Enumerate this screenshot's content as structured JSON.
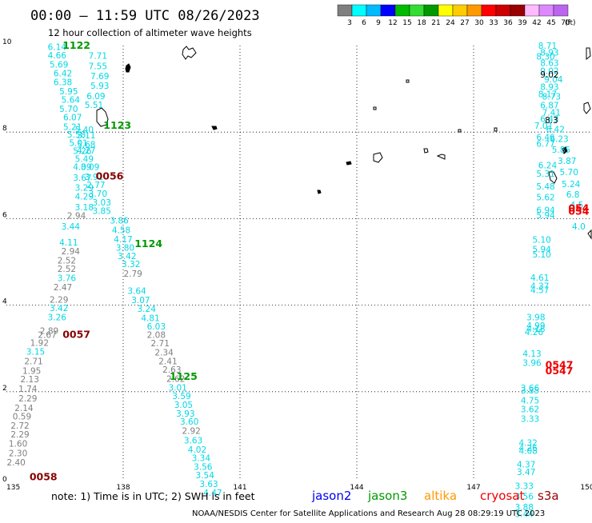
{
  "header": {
    "title": "00:00 — 11:59 UTC 08/26/2023",
    "subtitle": "12 hour collection of altimeter wave heights"
  },
  "colorbar": {
    "unit": "(ft)",
    "colors": [
      "#7f7f7f",
      "#00ffff",
      "#00bbff",
      "#0000ff",
      "#00bb00",
      "#33dd33",
      "#009900",
      "#ffff00",
      "#ffcc00",
      "#ff9900",
      "#ff0000",
      "#cc0000",
      "#990000",
      "#ffbbff",
      "#dd88ff",
      "#bb66ee"
    ],
    "labels": [
      "3",
      "6",
      "9",
      "12",
      "15",
      "18",
      "21",
      "24",
      "27",
      "30",
      "33",
      "36",
      "39",
      "42",
      "45",
      "70"
    ]
  },
  "footer": {
    "note": "note:  1) Time is in UTC;  2) SWH is in feet",
    "credit": "NOAA/NESDIS Center for Satellite Applications and Research     Aug 28 08:29:19 UTC 2023",
    "satellites": [
      {
        "name": "jason2",
        "color": "#0000ee"
      },
      {
        "name": "jason3",
        "color": "#009900"
      },
      {
        "name": "altika",
        "color": "#ff9900"
      },
      {
        "name": "cryosat",
        "color": "#ee0000"
      },
      {
        "name": "s3a",
        "color": "#990000"
      }
    ]
  },
  "chart_data": {
    "type": "scatter",
    "title": "00:00 — 11:59 UTC 08/26/2023",
    "subtitle": "12 hour collection of altimeter wave heights",
    "xlim": [
      135,
      150
    ],
    "ylim": [
      0,
      10
    ],
    "xticks": [
      "135",
      "138",
      "141",
      "144",
      "147",
      "150"
    ],
    "yticks": [
      "0",
      "2",
      "4",
      "6",
      "8",
      "10"
    ],
    "grid": true,
    "value_unit": "ft",
    "colors": {
      "band_3": "#7f7f7f",
      "band_6": "#00d8e6",
      "jason3": "#009900",
      "s3a": "#880000",
      "cryosat": "#ee0000"
    },
    "pass_labels": [
      {
        "label": "1122",
        "x": 136.8,
        "y": 10.0,
        "sat": "jason3"
      },
      {
        "label": "1123",
        "x": 137.85,
        "y": 8.15,
        "sat": "jason3"
      },
      {
        "label": "0056",
        "x": 137.65,
        "y": 6.98,
        "sat": "s3a"
      },
      {
        "label": "1124",
        "x": 138.65,
        "y": 5.42,
        "sat": "jason3"
      },
      {
        "label": "0057",
        "x": 136.8,
        "y": 3.32,
        "sat": "s3a"
      },
      {
        "label": "1125",
        "x": 139.55,
        "y": 2.35,
        "sat": "jason3"
      },
      {
        "label": "0058",
        "x": 135.95,
        "y": 0.03,
        "sat": "s3a"
      },
      {
        "label": "0547",
        "x": 149.2,
        "y": 2.62,
        "sat": "cryosat"
      },
      {
        "label": "0547",
        "x": 149.2,
        "y": 2.48,
        "sat": "cryosat"
      },
      {
        "label": "054",
        "x": 149.7,
        "y": 6.24,
        "sat": "cryosat"
      },
      {
        "label": "054",
        "x": 149.7,
        "y": 6.16,
        "sat": "cryosat"
      }
    ],
    "series": [
      {
        "name": "1122",
        "color": "#00d8e6",
        "points": [
          {
            "x": 136.3,
            "y": 9.97,
            "v": "6.14"
          },
          {
            "x": 136.3,
            "y": 9.78,
            "v": "4.66"
          },
          {
            "x": 136.35,
            "y": 9.57,
            "v": "5.69"
          },
          {
            "x": 136.45,
            "y": 9.36,
            "v": "6.42"
          },
          {
            "x": 136.45,
            "y": 9.16,
            "v": "6.38"
          },
          {
            "x": 136.6,
            "y": 8.95,
            "v": "5.95"
          },
          {
            "x": 136.65,
            "y": 8.75,
            "v": "5.64"
          },
          {
            "x": 136.6,
            "y": 8.54,
            "v": "5.70"
          },
          {
            "x": 136.7,
            "y": 8.35,
            "v": "6.07"
          },
          {
            "x": 136.7,
            "y": 8.12,
            "v": "5.21"
          },
          {
            "x": 136.8,
            "y": 7.95,
            "v": "5.58"
          },
          {
            "x": 136.85,
            "y": 7.75,
            "v": "5.01"
          },
          {
            "x": 136.95,
            "y": 7.57,
            "v": "5.26"
          },
          {
            "x": 137.0,
            "y": 7.38,
            "v": "5.49"
          },
          {
            "x": 136.95,
            "y": 7.2,
            "v": "4.09"
          },
          {
            "x": 136.95,
            "y": 6.95,
            "v": "3.67"
          },
          {
            "x": 137.0,
            "y": 6.72,
            "v": "3.29"
          },
          {
            "x": 137.0,
            "y": 6.52,
            "v": "4.29"
          },
          {
            "x": 137.0,
            "y": 6.27,
            "v": "3.18"
          },
          {
            "x": 137.35,
            "y": 9.77,
            "v": "7.71"
          },
          {
            "x": 137.35,
            "y": 9.53,
            "v": "7.55"
          },
          {
            "x": 137.4,
            "y": 9.3,
            "v": "7.69"
          },
          {
            "x": 137.4,
            "y": 9.08,
            "v": "5.93"
          },
          {
            "x": 137.3,
            "y": 8.84,
            "v": "6.09"
          },
          {
            "x": 137.25,
            "y": 8.63,
            "v": "5.51"
          },
          {
            "x": 137.0,
            "y": 8.06,
            "v": "5.40"
          },
          {
            "x": 137.05,
            "y": 7.93,
            "v": "3.11"
          },
          {
            "x": 137.05,
            "y": 7.72,
            "v": "5.68"
          },
          {
            "x": 137.05,
            "y": 7.58,
            "v": "4.27"
          },
          {
            "x": 137.15,
            "y": 7.2,
            "v": "3.09"
          },
          {
            "x": 137.25,
            "y": 6.97,
            "v": "3.91"
          },
          {
            "x": 137.3,
            "y": 6.78,
            "v": "2.77"
          },
          {
            "x": 137.35,
            "y": 6.58,
            "v": "3.70"
          },
          {
            "x": 137.45,
            "y": 6.38,
            "v": "3.03"
          },
          {
            "x": 137.45,
            "y": 6.18,
            "v": "3.85"
          }
        ]
      },
      {
        "name": "1124",
        "color": "#00d8e6",
        "points": [
          {
            "x": 137.9,
            "y": 5.96,
            "v": "3.86"
          },
          {
            "x": 137.95,
            "y": 5.74,
            "v": "4.58"
          },
          {
            "x": 138.0,
            "y": 5.53,
            "v": "4.17"
          },
          {
            "x": 138.05,
            "y": 5.33,
            "v": "3.80"
          },
          {
            "x": 138.1,
            "y": 5.14,
            "v": "3.42"
          },
          {
            "x": 138.2,
            "y": 4.95,
            "v": "3.32"
          },
          {
            "x": 138.35,
            "y": 4.33,
            "v": "3.64"
          },
          {
            "x": 138.45,
            "y": 4.12,
            "v": "3.07"
          },
          {
            "x": 138.6,
            "y": 3.92,
            "v": "3.24"
          },
          {
            "x": 138.7,
            "y": 3.71,
            "v": "4.81"
          },
          {
            "x": 138.85,
            "y": 3.51,
            "v": "6.03"
          }
        ]
      },
      {
        "name": "1124-low",
        "color": "#7f7f7f",
        "points": [
          {
            "x": 138.25,
            "y": 4.73,
            "v": "2.79"
          },
          {
            "x": 138.85,
            "y": 3.32,
            "v": "2.08"
          },
          {
            "x": 138.95,
            "y": 3.12,
            "v": "2.71"
          },
          {
            "x": 139.05,
            "y": 2.91,
            "v": "2.34"
          },
          {
            "x": 139.15,
            "y": 2.71,
            "v": "2.41"
          },
          {
            "x": 139.25,
            "y": 2.51,
            "v": "2.63"
          },
          {
            "x": 139.35,
            "y": 2.3,
            "v": "2.62"
          }
        ]
      },
      {
        "name": "1125",
        "color": "#00d8e6",
        "points": [
          {
            "x": 139.4,
            "y": 2.1,
            "v": "3.01"
          },
          {
            "x": 139.5,
            "y": 1.9,
            "v": "3.59"
          },
          {
            "x": 139.55,
            "y": 1.7,
            "v": "3.05"
          },
          {
            "x": 139.6,
            "y": 1.5,
            "v": "3.93"
          },
          {
            "x": 139.7,
            "y": 1.31,
            "v": "3.60"
          },
          {
            "x": 139.8,
            "y": 0.88,
            "v": "3.63"
          },
          {
            "x": 139.9,
            "y": 0.67,
            "v": "4.02"
          },
          {
            "x": 140.0,
            "y": 0.47,
            "v": "3.34"
          },
          {
            "x": 140.05,
            "y": 0.27,
            "v": "3.56"
          },
          {
            "x": 140.1,
            "y": 0.07,
            "v": "3.54"
          },
          {
            "x": 140.2,
            "y": -0.13,
            "v": "3.63"
          },
          {
            "x": 140.3,
            "y": -0.33,
            "v": "4.47"
          }
        ]
      },
      {
        "name": "1125-low",
        "color": "#7f7f7f",
        "points": [
          {
            "x": 139.75,
            "y": 1.1,
            "v": "2.92"
          }
        ]
      },
      {
        "name": "0057",
        "color": "#7f7f7f",
        "points": [
          {
            "x": 136.8,
            "y": 6.07,
            "v": "2.94"
          },
          {
            "x": 136.65,
            "y": 5.25,
            "v": "2.94"
          },
          {
            "x": 136.55,
            "y": 5.04,
            "v": "2.52"
          },
          {
            "x": 136.55,
            "y": 4.84,
            "v": "2.52"
          },
          {
            "x": 136.45,
            "y": 4.42,
            "v": "2.47"
          },
          {
            "x": 136.35,
            "y": 4.13,
            "v": "2.29"
          },
          {
            "x": 136.1,
            "y": 3.41,
            "v": "2.89"
          },
          {
            "x": 136.05,
            "y": 3.32,
            "v": "2.67"
          },
          {
            "x": 135.85,
            "y": 3.13,
            "v": "1.92"
          },
          {
            "x": 135.7,
            "y": 2.71,
            "v": "2.71"
          },
          {
            "x": 135.65,
            "y": 2.49,
            "v": "1.95"
          },
          {
            "x": 135.6,
            "y": 2.29,
            "v": "2.13"
          },
          {
            "x": 135.55,
            "y": 2.07,
            "v": "1.74"
          },
          {
            "x": 135.55,
            "y": 1.85,
            "v": "2.29"
          },
          {
            "x": 135.45,
            "y": 1.63,
            "v": "2.14"
          },
          {
            "x": 135.4,
            "y": 1.43,
            "v": "0.59"
          },
          {
            "x": 135.35,
            "y": 1.22,
            "v": "2.72"
          },
          {
            "x": 135.35,
            "y": 1.02,
            "v": "2.29"
          },
          {
            "x": 135.3,
            "y": 0.8,
            "v": "1.60"
          },
          {
            "x": 135.3,
            "y": 0.58,
            "v": "2.30"
          },
          {
            "x": 135.25,
            "y": 0.37,
            "v": "2.40"
          }
        ]
      },
      {
        "name": "0057-cyan",
        "color": "#00d8e6",
        "points": [
          {
            "x": 136.65,
            "y": 5.82,
            "v": "3.44"
          },
          {
            "x": 136.6,
            "y": 5.45,
            "v": "4.11"
          },
          {
            "x": 136.55,
            "y": 4.63,
            "v": "3.76"
          },
          {
            "x": 136.35,
            "y": 3.94,
            "v": "3.42"
          },
          {
            "x": 136.3,
            "y": 3.72,
            "v": "3.26"
          },
          {
            "x": 135.75,
            "y": 2.93,
            "v": "3.15"
          }
        ]
      },
      {
        "name": "cryosat-0547",
        "color": "#00d8e6",
        "points": [
          {
            "x": 148.9,
            "y": 10.0,
            "v": "8.71"
          },
          {
            "x": 148.95,
            "y": 9.84,
            "v": "8.93"
          },
          {
            "x": 148.85,
            "y": 9.75,
            "v": "8.30"
          },
          {
            "x": 148.95,
            "y": 9.6,
            "v": "8.63"
          },
          {
            "x": 148.95,
            "y": 9.42,
            "v": "9.02"
          },
          {
            "x": 149.05,
            "y": 9.22,
            "v": "9.04"
          },
          {
            "x": 148.95,
            "y": 9.05,
            "v": "8.93"
          },
          {
            "x": 148.9,
            "y": 8.88,
            "v": "8.17"
          },
          {
            "x": 149.0,
            "y": 8.83,
            "v": "8.73"
          },
          {
            "x": 148.95,
            "y": 8.62,
            "v": "6.87"
          },
          {
            "x": 149.0,
            "y": 8.46,
            "v": "7.41"
          },
          {
            "x": 148.95,
            "y": 8.31,
            "v": "6.43"
          },
          {
            "x": 148.8,
            "y": 8.15,
            "v": "7.01"
          },
          {
            "x": 149.1,
            "y": 8.07,
            "v": "6.42"
          },
          {
            "x": 148.85,
            "y": 7.88,
            "v": "6.46"
          },
          {
            "x": 149.2,
            "y": 7.85,
            "v": "6.23"
          },
          {
            "x": 148.85,
            "y": 7.74,
            "v": "6.77"
          },
          {
            "x": 149.25,
            "y": 7.6,
            "v": "5.85"
          },
          {
            "x": 149.4,
            "y": 7.34,
            "v": "3.87"
          },
          {
            "x": 148.9,
            "y": 7.24,
            "v": "6.24"
          },
          {
            "x": 149.45,
            "y": 7.08,
            "v": "5.70"
          },
          {
            "x": 148.85,
            "y": 7.04,
            "v": "5.31"
          },
          {
            "x": 149.5,
            "y": 6.8,
            "v": "5.24"
          },
          {
            "x": 148.85,
            "y": 6.75,
            "v": "5.48"
          },
          {
            "x": 149.55,
            "y": 6.56,
            "v": "6.8"
          },
          {
            "x": 148.85,
            "y": 6.5,
            "v": "5.62"
          },
          {
            "x": 149.65,
            "y": 6.32,
            "v": "4.5"
          },
          {
            "x": 148.85,
            "y": 6.2,
            "v": "6.94"
          },
          {
            "x": 148.85,
            "y": 6.08,
            "v": "5.94"
          },
          {
            "x": 149.7,
            "y": 5.82,
            "v": "4.0"
          },
          {
            "x": 148.75,
            "y": 5.52,
            "v": "5.10"
          },
          {
            "x": 148.75,
            "y": 5.3,
            "v": "5.94"
          },
          {
            "x": 148.75,
            "y": 5.18,
            "v": "5.10"
          },
          {
            "x": 148.7,
            "y": 4.64,
            "v": "4.61"
          },
          {
            "x": 148.7,
            "y": 4.45,
            "v": "4.37"
          },
          {
            "x": 148.7,
            "y": 4.35,
            "v": "4.57"
          },
          {
            "x": 148.6,
            "y": 3.72,
            "v": "3.98"
          },
          {
            "x": 148.6,
            "y": 3.53,
            "v": "4.99"
          },
          {
            "x": 148.6,
            "y": 3.46,
            "v": "4.18"
          },
          {
            "x": 148.55,
            "y": 3.38,
            "v": "4.26"
          },
          {
            "x": 148.5,
            "y": 2.88,
            "v": "4.13"
          },
          {
            "x": 148.5,
            "y": 2.67,
            "v": "3.96"
          },
          {
            "x": 148.45,
            "y": 2.09,
            "v": "3.66"
          },
          {
            "x": 148.45,
            "y": 2.03,
            "v": "3.85"
          },
          {
            "x": 148.45,
            "y": 1.8,
            "v": "4.75"
          },
          {
            "x": 148.45,
            "y": 1.6,
            "v": "3.62"
          },
          {
            "x": 148.45,
            "y": 1.38,
            "v": "3.33"
          },
          {
            "x": 148.4,
            "y": 0.82,
            "v": "4.32"
          },
          {
            "x": 148.4,
            "y": 0.7,
            "v": "4.26"
          },
          {
            "x": 148.4,
            "y": 0.64,
            "v": "4.08"
          },
          {
            "x": 148.35,
            "y": 0.32,
            "v": "4.37"
          },
          {
            "x": 148.35,
            "y": 0.15,
            "v": "3.47"
          },
          {
            "x": 148.3,
            "y": -0.18,
            "v": "3.33"
          },
          {
            "x": 148.3,
            "y": -0.42,
            "v": "3.56"
          },
          {
            "x": 148.3,
            "y": -0.67,
            "v": "3.88"
          },
          {
            "x": 148.3,
            "y": -0.82,
            "v": "3.44"
          }
        ]
      },
      {
        "name": "cryosat-gray",
        "color": "#000000",
        "points": [
          {
            "x": 148.95,
            "y": 9.33,
            "v": "9.02"
          },
          {
            "x": 149.0,
            "y": 8.28,
            "v": "8.3"
          }
        ]
      }
    ]
  }
}
